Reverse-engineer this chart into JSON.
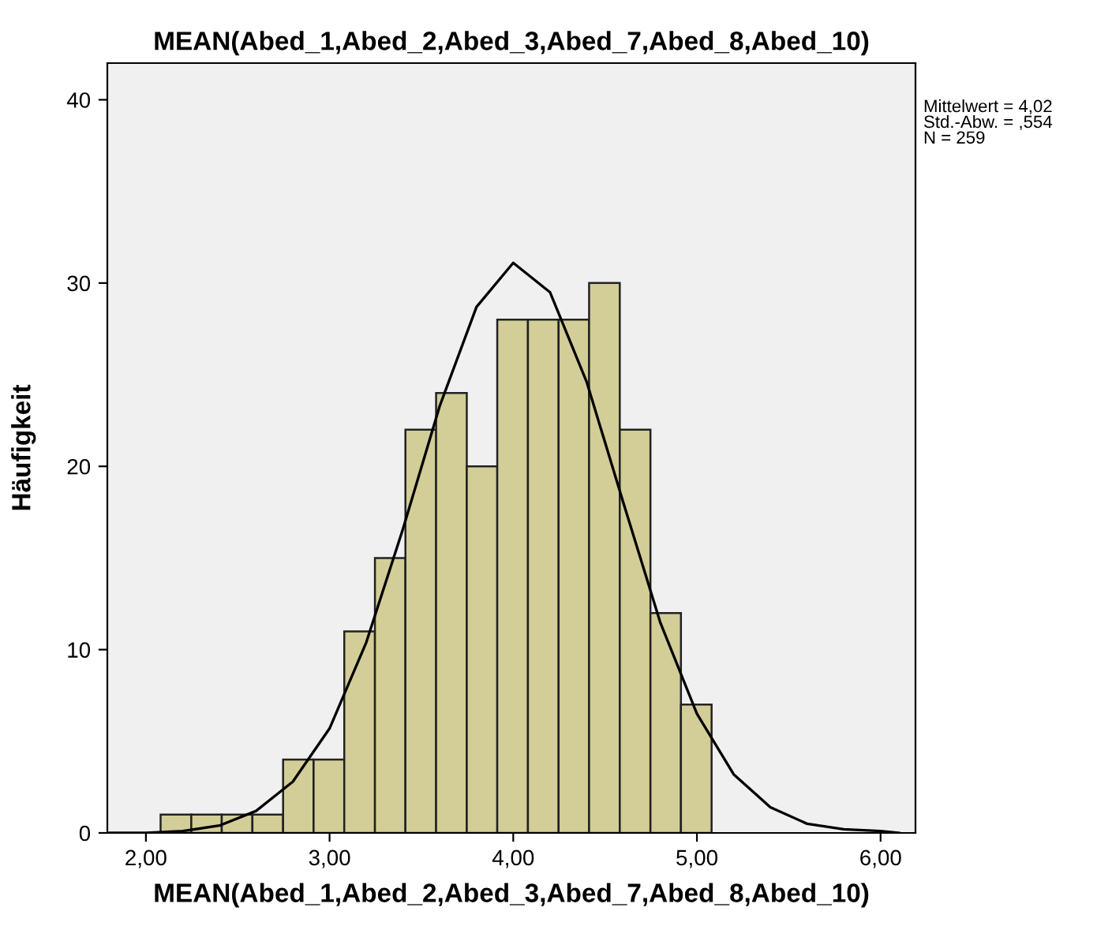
{
  "chart_data": {
    "type": "histogram",
    "title": "MEAN(Abed_1,Abed_2,Abed_3,Abed_7,Abed_8,Abed_10)",
    "xlabel": "MEAN(Abed_1,Abed_2,Abed_3,Abed_7,Abed_8,Abed_10)",
    "ylabel": "Häufigkeit",
    "series": [
      {
        "color": "#d3ce97",
        "bins": [
          2.08,
          2.247,
          2.413,
          2.58,
          2.747,
          2.913,
          3.08,
          3.247,
          3.413,
          3.58,
          3.747,
          3.913,
          4.08,
          4.247,
          4.413,
          4.58,
          4.747,
          4.913,
          5.08
        ],
        "values": [
          1,
          1,
          1,
          1,
          4,
          4,
          11,
          15,
          22,
          24,
          20,
          28,
          28,
          28,
          30,
          22,
          12,
          7
        ]
      },
      {
        "type": "line",
        "color": "#000000",
        "x": [
          1.8,
          2.0,
          2.2,
          2.4,
          2.6,
          2.8,
          3.0,
          3.2,
          3.4,
          3.6,
          3.8,
          4.0,
          4.2,
          4.4,
          4.6,
          4.8,
          5.0,
          5.2,
          5.4,
          5.6,
          5.8,
          6.0,
          6.1
        ],
        "values": [
          0.0,
          0.0,
          0.1,
          0.4,
          1.2,
          2.8,
          5.7,
          10.4,
          16.6,
          23.3,
          28.7,
          31.1,
          29.5,
          24.6,
          18.0,
          11.5,
          6.5,
          3.2,
          1.4,
          0.5,
          0.2,
          0.1,
          0.0
        ]
      }
    ],
    "xlim": [
      1.79,
      6.19
    ],
    "xticks": [
      {
        "value": 2,
        "label": "2,00"
      },
      {
        "value": 3,
        "label": "3,00"
      },
      {
        "value": 4,
        "label": "4,00"
      },
      {
        "value": 5,
        "label": "5,00"
      },
      {
        "value": 6,
        "label": "6,00"
      }
    ],
    "ylim": [
      0,
      42
    ],
    "yticks": [
      0,
      10,
      20,
      30,
      40
    ],
    "grid": false,
    "legend": false,
    "annotations": [
      "Mittelwert = 4,02\nStd.-Abw. = ,554\nN = 259"
    ]
  }
}
